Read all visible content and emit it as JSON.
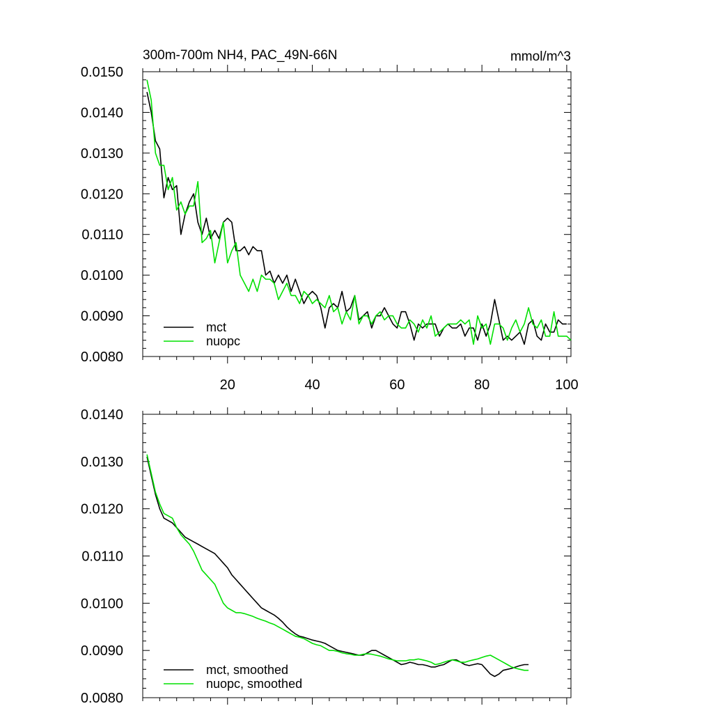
{
  "chart_data": [
    {
      "type": "line",
      "title": "300m-700m NH4, PAC_49N-66N",
      "units": "mmol/m^3",
      "xlabel": "",
      "ylabel": "",
      "xlim": [
        0,
        101
      ],
      "ylim": [
        0.008,
        0.015
      ],
      "x_tick_labels": [
        "20",
        "40",
        "60",
        "80",
        "100"
      ],
      "y_tick_labels": [
        "0.0150",
        "0.0140",
        "0.0130",
        "0.0120",
        "0.0110",
        "0.0100",
        "0.0090",
        "0.0080"
      ],
      "legend_position": "bottom-left",
      "series": [
        {
          "name": "mct",
          "color": "#000000",
          "values": [
            0.0145,
            0.014,
            0.0133,
            0.0131,
            0.0119,
            0.0124,
            0.0121,
            0.0122,
            0.011,
            0.0115,
            0.0118,
            0.012,
            0.0113,
            0.011,
            0.0114,
            0.0109,
            0.0111,
            0.0109,
            0.0113,
            0.0114,
            0.0113,
            0.0106,
            0.0106,
            0.0107,
            0.0105,
            0.0107,
            0.0106,
            0.0106,
            0.01,
            0.0101,
            0.0098,
            0.01,
            0.0098,
            0.01,
            0.0096,
            0.0099,
            0.0096,
            0.0093,
            0.0095,
            0.0096,
            0.0095,
            0.0092,
            0.0087,
            0.0092,
            0.0093,
            0.0092,
            0.0096,
            0.0091,
            0.0092,
            0.0095,
            0.0089,
            0.009,
            0.0091,
            0.0087,
            0.009,
            0.009,
            0.0092,
            0.009,
            0.0088,
            0.0087,
            0.0091,
            0.0091,
            0.0088,
            0.0084,
            0.0088,
            0.0087,
            0.0088,
            0.0088,
            0.0088,
            0.0085,
            0.0087,
            0.0088,
            0.0087,
            0.0087,
            0.0088,
            0.0085,
            0.0087,
            0.0087,
            0.0084,
            0.0088,
            0.0085,
            0.0088,
            0.0094,
            0.0089,
            0.0084,
            0.0085,
            0.0084,
            0.0085,
            0.0086,
            0.0083,
            0.0088,
            0.0089,
            0.0085,
            0.0084,
            0.0088,
            0.0086,
            0.0086,
            0.0089,
            0.0088,
            0.0088
          ]
        },
        {
          "name": "nuopc",
          "color": "#00e000",
          "values": [
            0.0148,
            0.0143,
            0.013,
            0.0127,
            0.0127,
            0.0121,
            0.0124,
            0.0116,
            0.0118,
            0.0115,
            0.0117,
            0.0117,
            0.0123,
            0.0108,
            0.0109,
            0.0111,
            0.0103,
            0.0108,
            0.0113,
            0.0103,
            0.0106,
            0.0108,
            0.01,
            0.0098,
            0.0096,
            0.0099,
            0.0096,
            0.01,
            0.0099,
            0.0099,
            0.0098,
            0.0094,
            0.0096,
            0.0098,
            0.0095,
            0.0095,
            0.0093,
            0.0096,
            0.0095,
            0.0093,
            0.0094,
            0.0093,
            0.0092,
            0.0095,
            0.0091,
            0.0092,
            0.0088,
            0.0091,
            0.0089,
            0.0095,
            0.0088,
            0.009,
            0.009,
            0.0088,
            0.009,
            0.0091,
            0.0089,
            0.009,
            0.009,
            0.0088,
            0.0087,
            0.0087,
            0.0089,
            0.0088,
            0.0086,
            0.0089,
            0.0087,
            0.009,
            0.0085,
            0.0086,
            0.0087,
            0.0088,
            0.0088,
            0.0088,
            0.0089,
            0.0088,
            0.0089,
            0.0083,
            0.009,
            0.0087,
            0.0088,
            0.0083,
            0.0088,
            0.0088,
            0.0087,
            0.0084,
            0.0087,
            0.0089,
            0.0086,
            0.0088,
            0.0092,
            0.0088,
            0.0087,
            0.0089,
            0.0085,
            0.0085,
            0.0091,
            0.0085,
            0.0085,
            0.0085,
            0.0084
          ]
        }
      ]
    },
    {
      "type": "line",
      "title": "",
      "xlabel": "",
      "ylabel": "",
      "xlim": [
        0,
        101
      ],
      "ylim": [
        0.008,
        0.014
      ],
      "x_tick_labels": [],
      "y_tick_labels": [
        "0.0140",
        "0.0130",
        "0.0120",
        "0.0110",
        "0.0100",
        "0.0090",
        "0.0080"
      ],
      "legend_position": "bottom-left",
      "series": [
        {
          "name": "mct, smoothed",
          "color": "#000000",
          "values": [
            0.0131,
            0.0127,
            0.0123,
            0.012,
            0.0118,
            0.01175,
            0.0117,
            0.0116,
            0.0115,
            0.0114,
            0.01135,
            0.0113,
            0.01125,
            0.0112,
            0.01115,
            0.0111,
            0.01105,
            0.01095,
            0.01085,
            0.01075,
            0.0106,
            0.0105,
            0.0104,
            0.0103,
            0.0102,
            0.0101,
            0.01,
            0.0099,
            0.00985,
            0.0098,
            0.00975,
            0.00968,
            0.0096,
            0.0095,
            0.00942,
            0.00935,
            0.0093,
            0.00928,
            0.00925,
            0.00922,
            0.0092,
            0.00918,
            0.00915,
            0.0091,
            0.00905,
            0.009,
            0.00898,
            0.00896,
            0.00894,
            0.00892,
            0.0089,
            0.0089,
            0.00895,
            0.009,
            0.009,
            0.00895,
            0.0089,
            0.00885,
            0.0088,
            0.00875,
            0.0087,
            0.00872,
            0.00875,
            0.00873,
            0.0087,
            0.0087,
            0.00868,
            0.00865,
            0.00865,
            0.00868,
            0.0087,
            0.00875,
            0.0088,
            0.0088,
            0.00875,
            0.0087,
            0.00868,
            0.0087,
            0.00872,
            0.0087,
            0.0086,
            0.0085,
            0.00845,
            0.0085,
            0.00858,
            0.0086,
            0.00862,
            0.00865,
            0.00868,
            0.0087,
            0.0087
          ]
        },
        {
          "name": "nuopc, smoothed",
          "color": "#00e000",
          "values": [
            0.01315,
            0.01275,
            0.01235,
            0.0121,
            0.0119,
            0.01185,
            0.0118,
            0.0116,
            0.01145,
            0.01135,
            0.01125,
            0.0111,
            0.0109,
            0.0107,
            0.0106,
            0.0105,
            0.0104,
            0.0102,
            0.01,
            0.0099,
            0.00985,
            0.0098,
            0.0098,
            0.00978,
            0.00975,
            0.00972,
            0.00968,
            0.00965,
            0.00962,
            0.00958,
            0.00955,
            0.0095,
            0.00945,
            0.0094,
            0.00935,
            0.0093,
            0.00928,
            0.00925,
            0.0092,
            0.00915,
            0.00912,
            0.0091,
            0.00905,
            0.009,
            0.009,
            0.00898,
            0.00895,
            0.00893,
            0.00892,
            0.0089,
            0.0089,
            0.00892,
            0.00893,
            0.00892,
            0.0089,
            0.00888,
            0.00885,
            0.00882,
            0.0088,
            0.00878,
            0.00878,
            0.00878,
            0.0088,
            0.0088,
            0.00882,
            0.0088,
            0.00878,
            0.00875,
            0.0087,
            0.00872,
            0.00875,
            0.00878,
            0.0088,
            0.00878,
            0.00875,
            0.00875,
            0.00878,
            0.0088,
            0.00882,
            0.00885,
            0.00888,
            0.0089,
            0.00885,
            0.0088,
            0.00875,
            0.0087,
            0.00865,
            0.00862,
            0.0086,
            0.00858,
            0.00858
          ]
        }
      ]
    }
  ]
}
